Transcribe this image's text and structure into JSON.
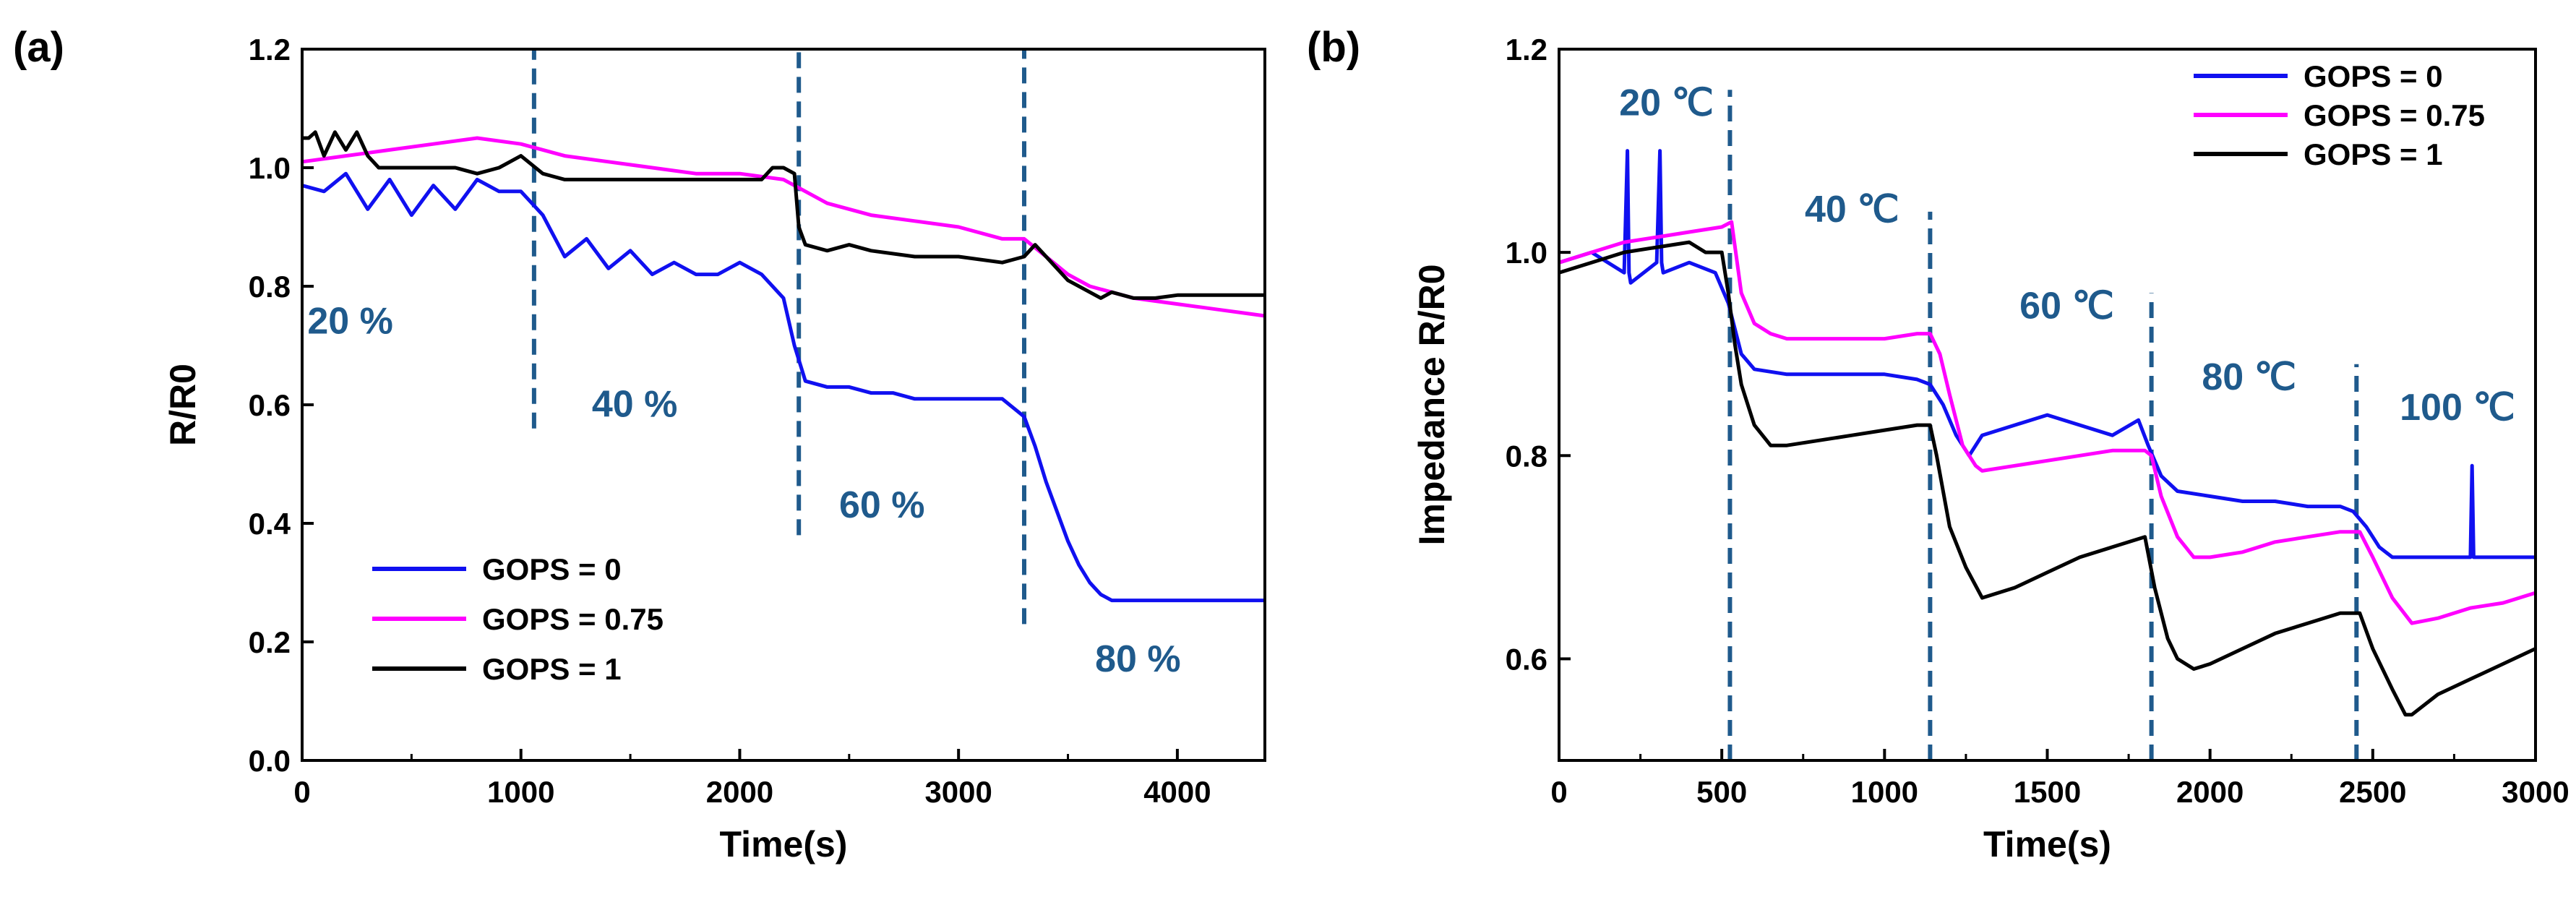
{
  "chart_data": [
    {
      "type": "line",
      "panel_label": "(a)",
      "xlabel": "Time(s)",
      "ylabel": "R/R0",
      "xlim": [
        0,
        4400
      ],
      "ylim": [
        0.0,
        1.2
      ],
      "xticks": [
        0,
        1000,
        2000,
        3000,
        4000
      ],
      "xtick_labels": [
        "0",
        "1000",
        "2000",
        "3000",
        "4000"
      ],
      "yticks": [
        0.0,
        0.2,
        0.4,
        0.6,
        0.8,
        1.0,
        1.2
      ],
      "ytick_labels": [
        "0.0",
        "0.2",
        "0.4",
        "0.6",
        "0.8",
        "1.0",
        "1.2"
      ],
      "legend_position": "bottom-left",
      "series": [
        {
          "name": "GOPS = 0",
          "color": "#1010f0",
          "x": [
            0,
            100,
            200,
            300,
            400,
            500,
            600,
            700,
            800,
            900,
            1000,
            1050,
            1100,
            1200,
            1300,
            1400,
            1500,
            1600,
            1700,
            1800,
            1900,
            2000,
            2100,
            2200,
            2250,
            2300,
            2400,
            2500,
            2600,
            2700,
            2800,
            2900,
            3000,
            3100,
            3200,
            3300,
            3350,
            3400,
            3450,
            3500,
            3550,
            3600,
            3650,
            3700,
            3800,
            3900,
            4000,
            4100,
            4200,
            4300,
            4400
          ],
          "y": [
            0.97,
            0.96,
            0.99,
            0.93,
            0.98,
            0.92,
            0.97,
            0.93,
            0.98,
            0.96,
            0.96,
            0.94,
            0.92,
            0.85,
            0.88,
            0.83,
            0.86,
            0.82,
            0.84,
            0.82,
            0.82,
            0.84,
            0.82,
            0.78,
            0.7,
            0.64,
            0.63,
            0.63,
            0.62,
            0.62,
            0.61,
            0.61,
            0.61,
            0.61,
            0.61,
            0.58,
            0.53,
            0.47,
            0.42,
            0.37,
            0.33,
            0.3,
            0.28,
            0.27,
            0.27,
            0.27,
            0.27,
            0.27,
            0.27,
            0.27,
            0.27
          ]
        },
        {
          "name": "GOPS = 0.75",
          "color": "#ff00ff",
          "x": [
            0,
            200,
            400,
            600,
            800,
            1000,
            1200,
            1400,
            1600,
            1800,
            2000,
            2200,
            2300,
            2400,
            2600,
            2800,
            3000,
            3200,
            3300,
            3400,
            3500,
            3600,
            3700,
            3800,
            3900,
            4000,
            4100,
            4200,
            4300,
            4400
          ],
          "y": [
            1.01,
            1.02,
            1.03,
            1.04,
            1.05,
            1.04,
            1.02,
            1.01,
            1.0,
            0.99,
            0.99,
            0.98,
            0.96,
            0.94,
            0.92,
            0.91,
            0.9,
            0.88,
            0.88,
            0.85,
            0.82,
            0.8,
            0.79,
            0.78,
            0.775,
            0.77,
            0.765,
            0.76,
            0.755,
            0.75
          ]
        },
        {
          "name": "GOPS = 1",
          "color": "#000000",
          "x": [
            0,
            30,
            60,
            100,
            150,
            200,
            250,
            300,
            350,
            400,
            500,
            600,
            700,
            800,
            900,
            950,
            1000,
            1100,
            1200,
            1400,
            1600,
            1800,
            2000,
            2100,
            2150,
            2200,
            2250,
            2270,
            2300,
            2400,
            2500,
            2600,
            2800,
            3000,
            3200,
            3300,
            3350,
            3400,
            3450,
            3500,
            3600,
            3650,
            3700,
            3800,
            3900,
            4000,
            4100,
            4200,
            4400
          ],
          "y": [
            1.05,
            1.05,
            1.06,
            1.02,
            1.06,
            1.03,
            1.06,
            1.02,
            1.0,
            1.0,
            1.0,
            1.0,
            1.0,
            0.99,
            1.0,
            1.01,
            1.02,
            0.99,
            0.98,
            0.98,
            0.98,
            0.98,
            0.98,
            0.98,
            1.0,
            1.0,
            0.99,
            0.9,
            0.87,
            0.86,
            0.87,
            0.86,
            0.85,
            0.85,
            0.84,
            0.85,
            0.87,
            0.85,
            0.83,
            0.81,
            0.79,
            0.78,
            0.79,
            0.78,
            0.78,
            0.785,
            0.785,
            0.785,
            0.785
          ]
        }
      ],
      "vlines": [
        {
          "x": 1060,
          "y0": 0.56,
          "y1": 1.2
        },
        {
          "x": 2270,
          "y0": 0.38,
          "y1": 1.2
        },
        {
          "x": 3300,
          "y0": 0.23,
          "y1": 1.2
        }
      ],
      "annotations": [
        {
          "text": "20 %",
          "x": 220,
          "y": 0.72
        },
        {
          "text": "40 %",
          "x": 1520,
          "y": 0.58
        },
        {
          "text": "60 %",
          "x": 2650,
          "y": 0.41
        },
        {
          "text": "80 %",
          "x": 3820,
          "y": 0.15
        }
      ]
    },
    {
      "type": "line",
      "panel_label": "(b)",
      "xlabel": "Time(s)",
      "ylabel": "Impedance R/R0",
      "xlim": [
        0,
        3000
      ],
      "ylim": [
        0.5,
        1.2
      ],
      "xticks": [
        0,
        500,
        1000,
        1500,
        2000,
        2500,
        3000
      ],
      "xtick_labels": [
        "0",
        "500",
        "1000",
        "1500",
        "2000",
        "2500",
        "3000"
      ],
      "yticks": [
        0.6,
        0.8,
        1.0,
        1.2
      ],
      "ytick_labels": [
        "0.6",
        "0.8",
        "1.0",
        "1.2"
      ],
      "legend_position": "top-right",
      "series": [
        {
          "name": "GOPS = 0",
          "color": "#1010f0",
          "x": [
            0,
            100,
            200,
            210,
            215,
            220,
            300,
            310,
            315,
            320,
            400,
            480,
            520,
            560,
            600,
            700,
            800,
            900,
            1000,
            1100,
            1140,
            1180,
            1220,
            1260,
            1300,
            1400,
            1500,
            1600,
            1700,
            1780,
            1810,
            1850,
            1900,
            2000,
            2100,
            2200,
            2300,
            2400,
            2440,
            2480,
            2520,
            2560,
            2600,
            2700,
            2800,
            2805,
            2810,
            2815,
            2900,
            3000
          ],
          "y": [
            0.99,
            1.0,
            0.98,
            1.1,
            0.98,
            0.97,
            0.99,
            1.1,
            0.99,
            0.98,
            0.99,
            0.98,
            0.95,
            0.9,
            0.885,
            0.88,
            0.88,
            0.88,
            0.88,
            0.875,
            0.87,
            0.85,
            0.82,
            0.8,
            0.82,
            0.83,
            0.84,
            0.83,
            0.82,
            0.835,
            0.81,
            0.78,
            0.765,
            0.76,
            0.755,
            0.755,
            0.75,
            0.75,
            0.745,
            0.73,
            0.71,
            0.7,
            0.7,
            0.7,
            0.7,
            0.79,
            0.7,
            0.7,
            0.7,
            0.7
          ]
        },
        {
          "name": "GOPS = 0.75",
          "color": "#ff00ff",
          "x": [
            0,
            100,
            200,
            300,
            400,
            500,
            530,
            560,
            600,
            650,
            700,
            800,
            900,
            1000,
            1100,
            1140,
            1170,
            1200,
            1240,
            1280,
            1300,
            1400,
            1500,
            1600,
            1700,
            1800,
            1820,
            1850,
            1900,
            1950,
            2000,
            2100,
            2200,
            2300,
            2400,
            2460,
            2500,
            2560,
            2620,
            2700,
            2800,
            2900,
            3000
          ],
          "y": [
            0.99,
            1.0,
            1.01,
            1.015,
            1.02,
            1.025,
            1.03,
            0.96,
            0.93,
            0.92,
            0.915,
            0.915,
            0.915,
            0.915,
            0.92,
            0.92,
            0.9,
            0.86,
            0.81,
            0.79,
            0.785,
            0.79,
            0.795,
            0.8,
            0.805,
            0.805,
            0.8,
            0.76,
            0.72,
            0.7,
            0.7,
            0.705,
            0.715,
            0.72,
            0.725,
            0.725,
            0.7,
            0.66,
            0.635,
            0.64,
            0.65,
            0.655,
            0.665
          ]
        },
        {
          "name": "GOPS = 1",
          "color": "#000000",
          "x": [
            0,
            100,
            200,
            300,
            400,
            450,
            500,
            520,
            540,
            560,
            600,
            650,
            700,
            800,
            900,
            1000,
            1100,
            1140,
            1160,
            1200,
            1250,
            1300,
            1400,
            1500,
            1600,
            1700,
            1800,
            1830,
            1870,
            1900,
            1950,
            2000,
            2100,
            2200,
            2300,
            2400,
            2460,
            2500,
            2560,
            2600,
            2620,
            2700,
            2800,
            2900,
            3000
          ],
          "y": [
            0.98,
            0.99,
            1.0,
            1.005,
            1.01,
            1.0,
            1.0,
            0.96,
            0.91,
            0.87,
            0.83,
            0.81,
            0.81,
            0.815,
            0.82,
            0.825,
            0.83,
            0.83,
            0.8,
            0.73,
            0.69,
            0.66,
            0.67,
            0.685,
            0.7,
            0.71,
            0.72,
            0.67,
            0.62,
            0.6,
            0.59,
            0.595,
            0.61,
            0.625,
            0.635,
            0.645,
            0.645,
            0.61,
            0.57,
            0.545,
            0.545,
            0.565,
            0.58,
            0.595,
            0.61
          ]
        }
      ],
      "vlines": [
        {
          "x": 525,
          "y0": 0.5,
          "y1": 1.16
        },
        {
          "x": 1140,
          "y0": 0.5,
          "y1": 1.04
        },
        {
          "x": 1820,
          "y0": 0.5,
          "y1": 0.96
        },
        {
          "x": 2450,
          "y0": 0.5,
          "y1": 0.89
        }
      ],
      "annotations": [
        {
          "text": "20 ℃",
          "x": 330,
          "y": 1.135
        },
        {
          "text": "40 ℃",
          "x": 900,
          "y": 1.03
        },
        {
          "text": "60 ℃",
          "x": 1560,
          "y": 0.935
        },
        {
          "text": "80 ℃",
          "x": 2120,
          "y": 0.865
        },
        {
          "text": "100 ℃",
          "x": 2760,
          "y": 0.835
        }
      ]
    }
  ]
}
